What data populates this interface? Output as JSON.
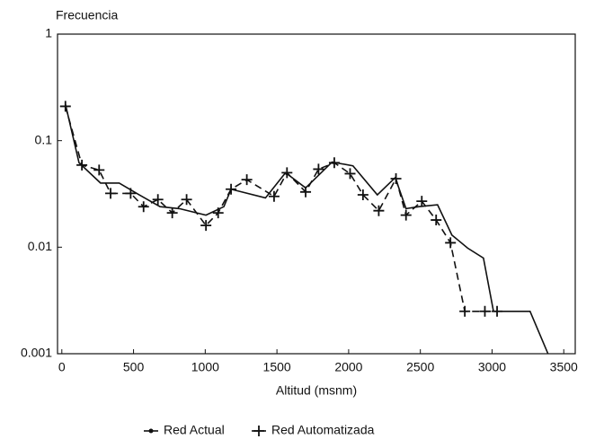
{
  "chart_data": {
    "type": "line",
    "y_label": "Frecuencia",
    "x_label": "Altitud (msnm)",
    "y_log": true,
    "xlim": [
      -30,
      3580
    ],
    "ylim": [
      0.001,
      1
    ],
    "xticks": [
      0,
      500,
      1000,
      1500,
      2000,
      2500,
      3000,
      3500
    ],
    "yticks": [
      0.001,
      0.01,
      0.1,
      1
    ],
    "legend": "bottom",
    "series": [
      {
        "name": "Red Actual",
        "color": "#111111",
        "style": "solid",
        "marker": "none",
        "x": [
          25,
          120,
          270,
          400,
          540,
          685,
          820,
          1005,
          1130,
          1180,
          1420,
          1560,
          1700,
          1885,
          2030,
          2200,
          2325,
          2400,
          2490,
          2620,
          2720,
          2830,
          2940,
          3010,
          3265,
          3390
        ],
        "values": [
          0.22,
          0.062,
          0.04,
          0.04,
          0.031,
          0.024,
          0.023,
          0.02,
          0.024,
          0.035,
          0.029,
          0.05,
          0.036,
          0.063,
          0.058,
          0.031,
          0.045,
          0.023,
          0.024,
          0.025,
          0.013,
          0.0098,
          0.0079,
          0.0025,
          0.0025,
          0.001
        ]
      },
      {
        "name": "Red Automatizada",
        "color": "#111111",
        "style": "dashed",
        "marker": "plus",
        "x": [
          25,
          140,
          260,
          340,
          480,
          570,
          670,
          770,
          870,
          1005,
          1090,
          1180,
          1290,
          1480,
          1570,
          1700,
          1790,
          1900,
          2010,
          2100,
          2210,
          2330,
          2400,
          2510,
          2610,
          2710,
          2810,
          2950,
          3035
        ],
        "values": [
          0.21,
          0.059,
          0.053,
          0.032,
          0.032,
          0.024,
          0.028,
          0.021,
          0.028,
          0.016,
          0.021,
          0.035,
          0.043,
          0.03,
          0.05,
          0.033,
          0.054,
          0.062,
          0.049,
          0.031,
          0.022,
          0.044,
          0.02,
          0.027,
          0.018,
          0.011,
          0.0025,
          0.0025,
          0.0025
        ]
      }
    ]
  }
}
